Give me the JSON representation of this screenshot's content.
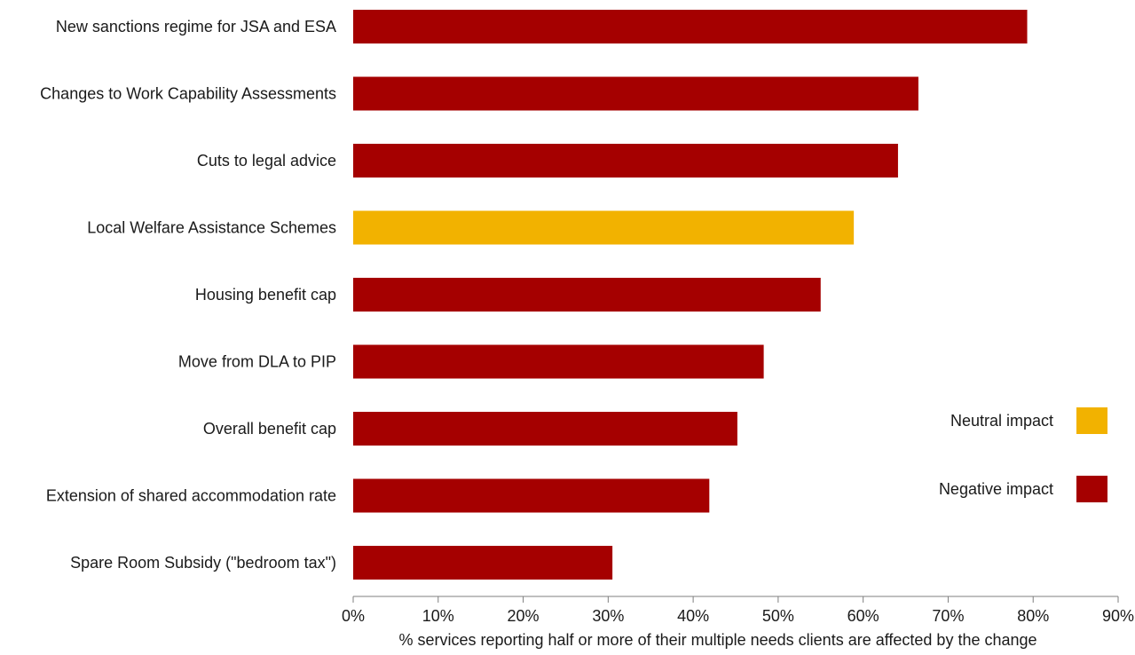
{
  "chart_data": {
    "type": "bar",
    "orientation": "horizontal",
    "categories": [
      "New sanctions regime for JSA and ESA",
      "Changes to Work Capability Assessments",
      "Cuts to legal advice",
      "Local Welfare Assistance Schemes",
      "Housing benefit cap",
      "Move from DLA to PIP",
      "Overall benefit cap",
      "Extension of shared accommodation rate",
      "Spare Room Subsidy (\"bedroom tax\")"
    ],
    "values": [
      79.3,
      66.5,
      64.1,
      58.9,
      55.0,
      48.3,
      45.2,
      41.9,
      30.5
    ],
    "impact": [
      "negative",
      "negative",
      "negative",
      "neutral",
      "negative",
      "negative",
      "negative",
      "negative",
      "negative"
    ],
    "xlabel": "% services reporting half or more of their multiple needs clients are affected by the change",
    "ylabel": "",
    "xlim": [
      0,
      90
    ],
    "xticks": [
      0,
      10,
      20,
      30,
      40,
      50,
      60,
      70,
      80,
      90
    ],
    "xtick_labels": [
      "0%",
      "10%",
      "20%",
      "30%",
      "40%",
      "50%",
      "60%",
      "70%",
      "80%",
      "90%"
    ],
    "grid": false,
    "legend": {
      "placement": "right",
      "entries": [
        {
          "key": "neutral",
          "label": "Neutral impact",
          "color": "#f2b200"
        },
        {
          "key": "negative",
          "label": "Negative impact",
          "color": "#a50000"
        }
      ]
    },
    "colors": {
      "negative": "#a50000",
      "neutral": "#f2b200",
      "axis": "#7f7f7f"
    }
  }
}
